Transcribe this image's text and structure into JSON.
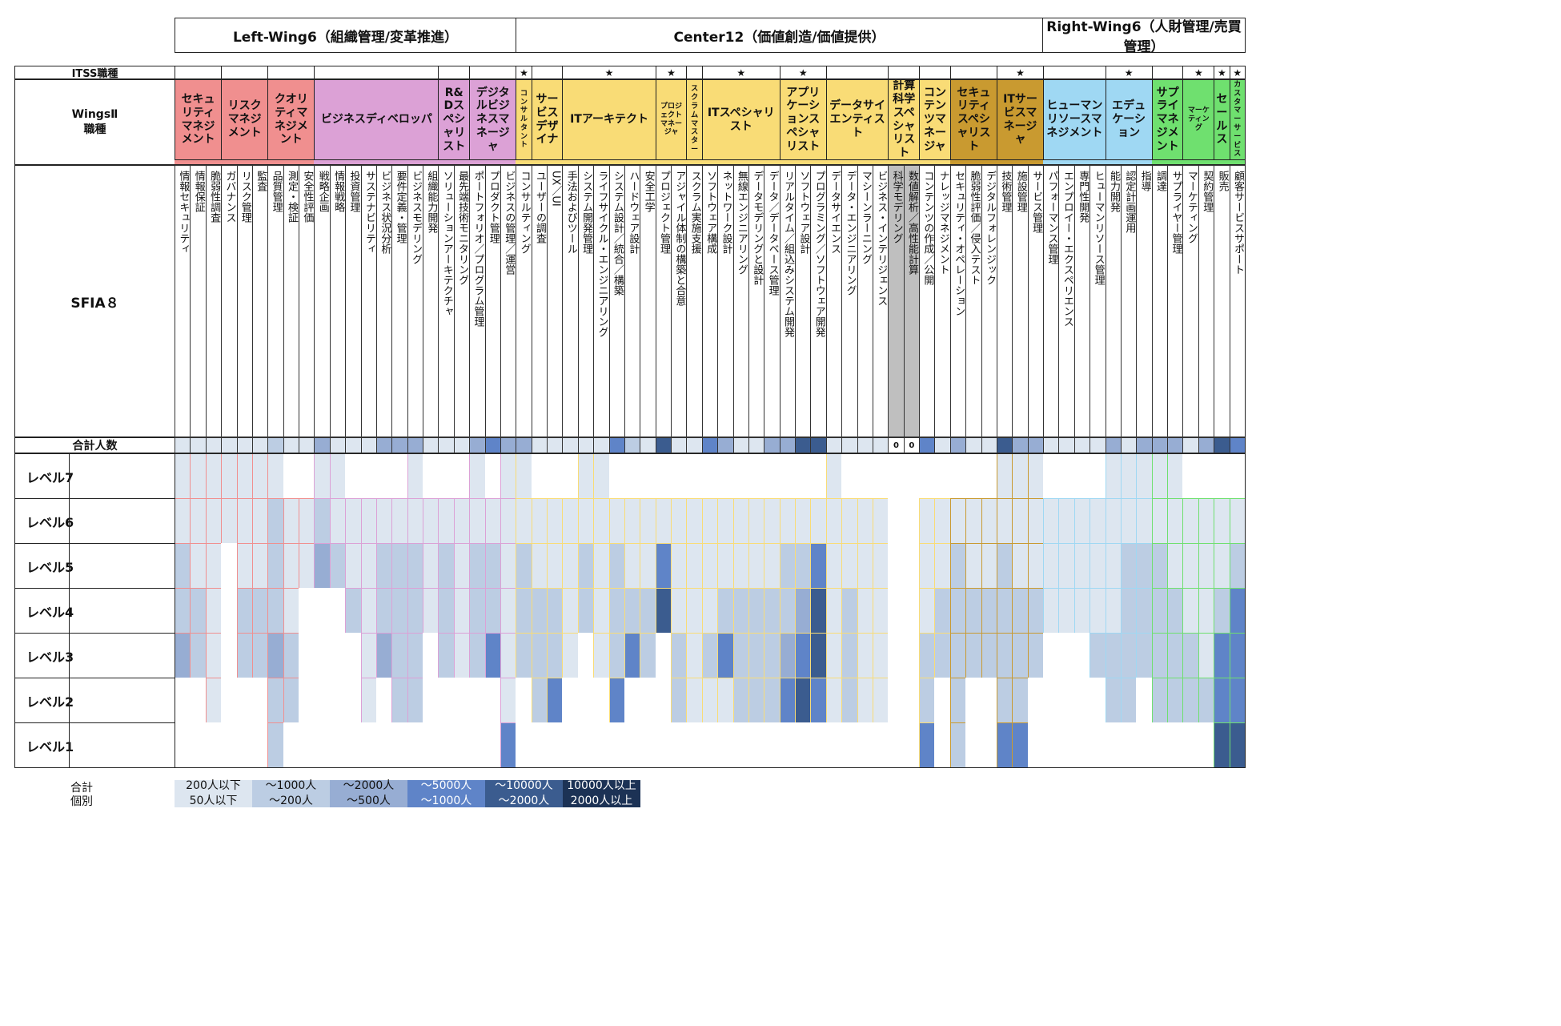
{
  "wings": [
    {
      "label": "Left-Wing6（組織管理/変革推進）"
    },
    {
      "label": "Center12（価値創造/価値提供）"
    },
    {
      "label": "Right-Wing6（人財管理/売買管理）"
    }
  ],
  "row_labels": {
    "itss": "ITSS職種",
    "wings_line1": "WingsⅡ",
    "wings_line2": "職種",
    "sfia": "SFIA８",
    "total": "合計人数"
  },
  "star_symbol": "★",
  "levels": [
    "レベル7",
    "レベル6",
    "レベル5",
    "レベル4",
    "レベル3",
    "レベル2",
    "レベル1"
  ],
  "zero_value": "0",
  "jobs": [
    {
      "label": "セキュリティマネジメント",
      "color": "#f08f8f",
      "star": false,
      "small": false
    },
    {
      "label": "リスクマネジメント",
      "color": "#f08f8f",
      "star": false,
      "small": false
    },
    {
      "label": "クオリティマネジメント",
      "color": "#f08f8f",
      "star": false,
      "small": false
    },
    {
      "label": "ビジネスディベロッパ",
      "color": "#dca1d6",
      "star": false,
      "small": false
    },
    {
      "label": "R&Dスペシャリスト",
      "color": "#dca1d6",
      "star": false,
      "small": false
    },
    {
      "label": "デジタルビジネスマネージャ",
      "color": "#dca1d6",
      "star": false,
      "small": false
    },
    {
      "label": "コンサルタント",
      "color": "#f9dc76",
      "star": true,
      "small": true
    },
    {
      "label": "サービスデザイナ",
      "color": "#f9dc76",
      "star": false,
      "small": false
    },
    {
      "label": "ITアーキテクト",
      "color": "#f9dc76",
      "star": true,
      "small": false
    },
    {
      "label": "プロジェクトマネージャ",
      "color": "#f9dc76",
      "star": true,
      "small": true
    },
    {
      "label": "スクラムマスター",
      "color": "#f9dc76",
      "star": false,
      "small": true
    },
    {
      "label": "ITスペシャリスト",
      "color": "#f9dc76",
      "star": true,
      "small": false
    },
    {
      "label": "アプリケーションスペシャリスト",
      "color": "#f9dc76",
      "star": true,
      "small": false
    },
    {
      "label": "データサイエンティスト",
      "color": "#f9dc76",
      "star": false,
      "small": false
    },
    {
      "label": "計算科学スペシャリスト",
      "color": "#f9dc76",
      "star": false,
      "small": false
    },
    {
      "label": "コンテンツマネージャ",
      "color": "#f9dc76",
      "star": false,
      "small": false
    },
    {
      "label": "セキュリティスペシャリスト",
      "color": "#c99a30",
      "star": false,
      "small": false
    },
    {
      "label": "ITサービスマネージャ",
      "color": "#c99a30",
      "star": true,
      "small": false
    },
    {
      "label": "ヒューマンリソースマネジメント",
      "color": "#9fd8f3",
      "star": false,
      "small": false
    },
    {
      "label": "エデュケーション",
      "color": "#9fd8f3",
      "star": true,
      "small": false
    },
    {
      "label": "サプライマネジメント",
      "color": "#6fe06f",
      "star": false,
      "small": false
    },
    {
      "label": "マーケティング",
      "color": "#6fe06f",
      "star": true,
      "small": true
    },
    {
      "label": "セールス",
      "color": "#6fe06f",
      "star": true,
      "small": false
    },
    {
      "label": "カスタマーサービス",
      "color": "#6fe06f",
      "star": true,
      "small": true
    }
  ],
  "skills": [
    {
      "label": "情報セキュリティ",
      "job": 0,
      "total": 1,
      "levels": [
        1,
        1,
        2,
        2,
        3,
        0,
        0
      ]
    },
    {
      "label": "情報保証",
      "job": 0,
      "total": 1,
      "levels": [
        1,
        1,
        1,
        2,
        2,
        0,
        0
      ]
    },
    {
      "label": "脆弱性調査",
      "job": 0,
      "total": 1,
      "levels": [
        1,
        1,
        1,
        1,
        1,
        1,
        0
      ]
    },
    {
      "label": "ガバナンス",
      "job": 1,
      "total": 1,
      "levels": [
        1,
        1,
        0,
        0,
        0,
        0,
        0
      ]
    },
    {
      "label": "リスク管理",
      "job": 1,
      "total": 1,
      "levels": [
        1,
        1,
        1,
        2,
        2,
        0,
        0
      ]
    },
    {
      "label": "監査",
      "job": 1,
      "total": 1,
      "levels": [
        1,
        1,
        1,
        2,
        2,
        0,
        0
      ]
    },
    {
      "label": "品質管理",
      "job": 2,
      "total": 2,
      "levels": [
        1,
        2,
        2,
        2,
        3,
        2,
        2
      ]
    },
    {
      "label": "測定・検証",
      "job": 2,
      "total": 1,
      "levels": [
        0,
        1,
        1,
        1,
        2,
        2,
        0
      ]
    },
    {
      "label": "安全性評価",
      "job": 2,
      "total": 1,
      "levels": [
        0,
        1,
        1,
        0,
        0,
        0,
        0
      ]
    },
    {
      "label": "戦略企画",
      "job": 3,
      "total": 3,
      "levels": [
        1,
        2,
        3,
        0,
        0,
        0,
        0
      ]
    },
    {
      "label": "情報戦略",
      "job": 3,
      "total": 1,
      "levels": [
        1,
        1,
        2,
        0,
        0,
        0,
        0
      ]
    },
    {
      "label": "投資管理",
      "job": 3,
      "total": 1,
      "levels": [
        0,
        1,
        1,
        2,
        0,
        0,
        0
      ]
    },
    {
      "label": "サステナビリティ",
      "job": 3,
      "total": 1,
      "levels": [
        0,
        1,
        1,
        1,
        1,
        1,
        0
      ]
    },
    {
      "label": "ビジネス状況分析",
      "job": 3,
      "total": 3,
      "levels": [
        0,
        1,
        2,
        2,
        3,
        0,
        0
      ]
    },
    {
      "label": "要件定義・管理",
      "job": 3,
      "total": 3,
      "levels": [
        0,
        1,
        2,
        2,
        2,
        2,
        0
      ]
    },
    {
      "label": "ビジネスモデリング",
      "job": 3,
      "total": 3,
      "levels": [
        1,
        1,
        2,
        2,
        2,
        2,
        0
      ]
    },
    {
      "label": "組織能力開発",
      "job": 3,
      "total": 1,
      "levels": [
        0,
        1,
        1,
        1,
        0,
        0,
        0
      ]
    },
    {
      "label": "ソリューションアーキテクチャ",
      "job": 4,
      "total": 1,
      "levels": [
        0,
        1,
        2,
        2,
        2,
        0,
        0
      ]
    },
    {
      "label": "最先端技術モニタリング",
      "job": 4,
      "total": 1,
      "levels": [
        0,
        1,
        1,
        1,
        1,
        0,
        0
      ]
    },
    {
      "label": "ポートフォリオ／プログラム管理",
      "job": 5,
      "total": 3,
      "levels": [
        1,
        1,
        2,
        2,
        2,
        0,
        0
      ]
    },
    {
      "label": "プロダクト管理",
      "job": 5,
      "total": 4,
      "levels": [
        0,
        1,
        2,
        2,
        4,
        0,
        0
      ]
    },
    {
      "label": "ビジネスの管理／運営",
      "job": 5,
      "total": 3,
      "levels": [
        1,
        1,
        1,
        1,
        1,
        1,
        4
      ]
    },
    {
      "label": "コンサルティング",
      "job": 6,
      "total": 3,
      "levels": [
        1,
        1,
        2,
        2,
        2,
        0,
        0
      ]
    },
    {
      "label": "ユーザーの調査",
      "job": 7,
      "total": 1,
      "levels": [
        0,
        1,
        1,
        2,
        2,
        2,
        0
      ]
    },
    {
      "label": "UX／UI",
      "job": 7,
      "total": 1,
      "levels": [
        0,
        1,
        1,
        2,
        2,
        4,
        0
      ]
    },
    {
      "label": "手法およびツール",
      "job": 8,
      "total": 1,
      "levels": [
        0,
        1,
        1,
        1,
        1,
        0,
        0
      ]
    },
    {
      "label": "システム開発管理",
      "job": 8,
      "total": 1,
      "levels": [
        1,
        1,
        2,
        2,
        0,
        0,
        0
      ]
    },
    {
      "label": "ライフサイクル・エンジニアリング",
      "job": 8,
      "total": 1,
      "levels": [
        1,
        1,
        1,
        1,
        1,
        0,
        0
      ]
    },
    {
      "label": "システム設計／統合／構築",
      "job": 8,
      "total": 4,
      "levels": [
        0,
        1,
        2,
        2,
        2,
        4,
        0
      ]
    },
    {
      "label": "ハードウェア設計",
      "job": 8,
      "total": 2,
      "levels": [
        0,
        1,
        1,
        2,
        4,
        0,
        0
      ]
    },
    {
      "label": "安全工学",
      "job": 8,
      "total": 1,
      "levels": [
        0,
        1,
        1,
        2,
        2,
        0,
        0
      ]
    },
    {
      "label": "プロジェクト管理",
      "job": 9,
      "total": 5,
      "levels": [
        0,
        1,
        4,
        5,
        0,
        0,
        0
      ]
    },
    {
      "label": "アジャイル体制の構築と合意",
      "job": 9,
      "total": 1,
      "levels": [
        0,
        1,
        1,
        1,
        2,
        2,
        0
      ]
    },
    {
      "label": "スクラム実施支援",
      "job": 10,
      "total": 1,
      "levels": [
        0,
        1,
        1,
        1,
        1,
        1,
        0
      ]
    },
    {
      "label": "ソフトウェア構成",
      "job": 11,
      "total": 4,
      "levels": [
        0,
        1,
        1,
        1,
        2,
        1,
        0
      ]
    },
    {
      "label": "ネットワーク設計",
      "job": 11,
      "total": 3,
      "levels": [
        0,
        1,
        1,
        2,
        4,
        1,
        0
      ]
    },
    {
      "label": "無線エンジニアリング",
      "job": 11,
      "total": 1,
      "levels": [
        0,
        1,
        1,
        2,
        2,
        2,
        0
      ]
    },
    {
      "label": "データモデリングと設計",
      "job": 11,
      "total": 1,
      "levels": [
        0,
        1,
        1,
        2,
        2,
        2,
        0
      ]
    },
    {
      "label": "データ／データベース管理",
      "job": 11,
      "total": 3,
      "levels": [
        0,
        1,
        1,
        2,
        2,
        2,
        0
      ]
    },
    {
      "label": "リアルタイム／組込みシステム開発",
      "job": 12,
      "total": 3,
      "levels": [
        0,
        1,
        2,
        2,
        3,
        4,
        0
      ]
    },
    {
      "label": "ソフトウェア設計",
      "job": 12,
      "total": 5,
      "levels": [
        0,
        1,
        2,
        3,
        4,
        5,
        0
      ]
    },
    {
      "label": "プログラミング／ソフトウェア開発",
      "job": 12,
      "total": 5,
      "levels": [
        0,
        1,
        4,
        5,
        5,
        4,
        0
      ]
    },
    {
      "label": "データサイエンス",
      "job": 13,
      "total": 1,
      "levels": [
        1,
        1,
        1,
        1,
        1,
        1,
        0
      ]
    },
    {
      "label": "データ・エンジニアリング",
      "job": 13,
      "total": 1,
      "levels": [
        0,
        1,
        1,
        2,
        2,
        2,
        0
      ]
    },
    {
      "label": "マシーンラーニング",
      "job": 13,
      "total": 1,
      "levels": [
        0,
        1,
        1,
        1,
        1,
        1,
        0
      ]
    },
    {
      "label": "ビジネス・インテリジェンス",
      "job": 13,
      "total": 1,
      "levels": [
        0,
        1,
        1,
        1,
        1,
        1,
        0
      ]
    },
    {
      "label": "科学モデリング",
      "job": 14,
      "total": 0,
      "levels": [
        0,
        0,
        0,
        0,
        0,
        0,
        0
      ]
    },
    {
      "label": "数値解析／高性能計算",
      "job": 14,
      "total": 0,
      "levels": [
        0,
        0,
        0,
        0,
        0,
        0,
        0
      ]
    },
    {
      "label": "コンテンツの作成／公開",
      "job": 15,
      "total": 4,
      "levels": [
        0,
        1,
        1,
        1,
        2,
        2,
        4
      ]
    },
    {
      "label": "ナレッジマネジメント",
      "job": 15,
      "total": 1,
      "levels": [
        0,
        1,
        1,
        2,
        2,
        0,
        0
      ]
    },
    {
      "label": "セキュリティ・オペレーション",
      "job": 16,
      "total": 3,
      "levels": [
        0,
        1,
        2,
        2,
        2,
        2,
        2
      ]
    },
    {
      "label": "脆弱性評価／侵入テスト",
      "job": 16,
      "total": 1,
      "levels": [
        0,
        1,
        1,
        2,
        2,
        0,
        0
      ]
    },
    {
      "label": "デジタルフォレンジック",
      "job": 16,
      "total": 1,
      "levels": [
        0,
        1,
        1,
        2,
        2,
        0,
        0
      ]
    },
    {
      "label": "技術管理",
      "job": 17,
      "total": 5,
      "levels": [
        1,
        1,
        2,
        2,
        2,
        2,
        4
      ]
    },
    {
      "label": "施設管理",
      "job": 17,
      "total": 3,
      "levels": [
        1,
        1,
        1,
        2,
        2,
        2,
        4
      ]
    },
    {
      "label": "サービス管理",
      "job": 17,
      "total": 3,
      "levels": [
        1,
        1,
        1,
        2,
        2,
        0,
        0
      ]
    },
    {
      "label": "パフォーマンス管理",
      "job": 18,
      "total": 1,
      "levels": [
        0,
        1,
        1,
        1,
        0,
        0,
        0
      ]
    },
    {
      "label": "エンプロイー・エクスペリエンス",
      "job": 18,
      "total": 1,
      "levels": [
        0,
        1,
        1,
        1,
        0,
        0,
        0
      ]
    },
    {
      "label": "専門性開発",
      "job": 18,
      "total": 1,
      "levels": [
        0,
        1,
        1,
        1,
        0,
        0,
        0
      ]
    },
    {
      "label": "ヒューマンリソース管理",
      "job": 18,
      "total": 1,
      "levels": [
        0,
        1,
        1,
        1,
        2,
        0,
        0
      ]
    },
    {
      "label": "能力開発",
      "job": 19,
      "total": 3,
      "levels": [
        1,
        1,
        1,
        1,
        2,
        2,
        0
      ]
    },
    {
      "label": "認定計画運用",
      "job": 19,
      "total": 1,
      "levels": [
        1,
        1,
        2,
        2,
        2,
        2,
        0
      ]
    },
    {
      "label": "指導",
      "job": 19,
      "total": 3,
      "levels": [
        1,
        1,
        2,
        2,
        2,
        0,
        0
      ]
    },
    {
      "label": "調達",
      "job": 20,
      "total": 3,
      "levels": [
        1,
        1,
        2,
        2,
        2,
        2,
        0
      ]
    },
    {
      "label": "サプライヤー管理",
      "job": 20,
      "total": 3,
      "levels": [
        1,
        1,
        1,
        2,
        2,
        2,
        0
      ]
    },
    {
      "label": "マーケティング",
      "job": 21,
      "total": 1,
      "levels": [
        0,
        1,
        1,
        1,
        2,
        2,
        0
      ]
    },
    {
      "label": "契約管理",
      "job": 21,
      "total": 3,
      "levels": [
        0,
        1,
        1,
        1,
        1,
        2,
        0
      ]
    },
    {
      "label": "販売",
      "job": 22,
      "total": 5,
      "levels": [
        0,
        1,
        1,
        2,
        4,
        4,
        5
      ]
    },
    {
      "label": "顧客サービスサポート",
      "job": 23,
      "total": 4,
      "levels": [
        0,
        1,
        2,
        4,
        4,
        4,
        5
      ]
    }
  ],
  "legend": {
    "row1_label": "合計",
    "row2_label": "個別",
    "cells": [
      {
        "line1": "200人以下",
        "line2": "50人以下",
        "bg": "#dde6f0",
        "fg": "#111111"
      },
      {
        "line1": "～1000人",
        "line2": "～200人",
        "bg": "#bccde3",
        "fg": "#111111"
      },
      {
        "line1": "～2000人",
        "line2": "～500人",
        "bg": "#97add3",
        "fg": "#111111"
      },
      {
        "line1": "～5000人",
        "line2": "～1000人",
        "bg": "#5f84c8",
        "fg": "#ffffff"
      },
      {
        "line1": "～10000人",
        "line2": "～2000人",
        "bg": "#3b5c8f",
        "fg": "#ffffff"
      },
      {
        "line1": "10000人以上",
        "line2": "2000人以上",
        "bg": "#1c3255",
        "fg": "#ffffff"
      }
    ]
  },
  "shade_colors": [
    "#ffffff",
    "#dde6f0",
    "#bccde3",
    "#97add3",
    "#5f84c8",
    "#3b5c8f",
    "#1c3255"
  ],
  "zero_bg": "#bfbfbf"
}
